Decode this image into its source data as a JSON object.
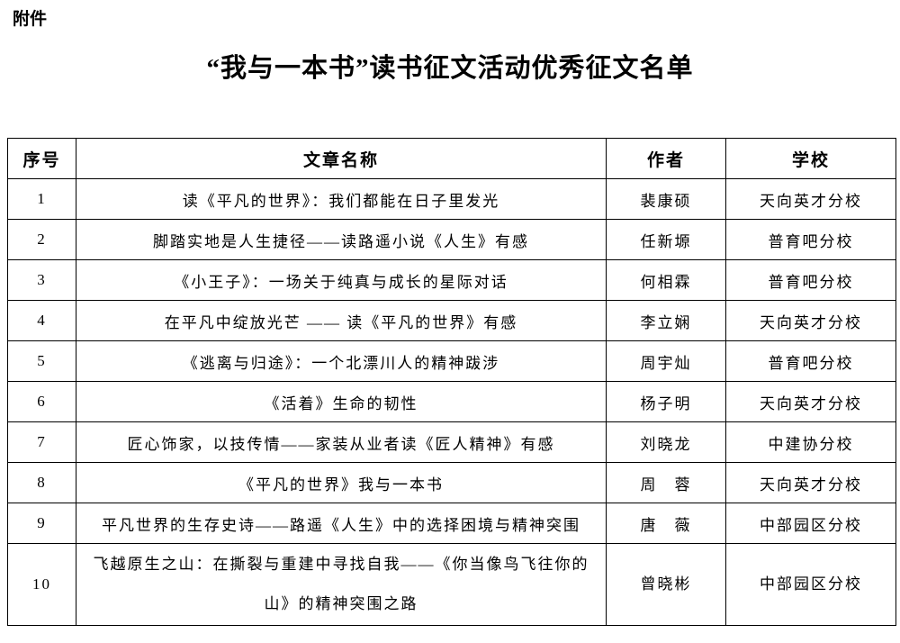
{
  "attachment_label": "附件",
  "title": "“我与一本书”读书征文活动优秀征文名单",
  "table": {
    "headers": [
      "序号",
      "文章名称",
      "作者",
      "学校"
    ],
    "rows": [
      {
        "no": "1",
        "article": "读《平凡的世界》：我们都能在日子里发光",
        "author": "裴康硕",
        "school": "天向英才分校"
      },
      {
        "no": "2",
        "article": "脚踏实地是人生捷径——读路遥小说《人生》有感",
        "author": "任新塬",
        "school": "普育吧分校"
      },
      {
        "no": "3",
        "article": "《小王子》：一场关于纯真与成长的星际对话",
        "author": "何相霖",
        "school": "普育吧分校"
      },
      {
        "no": "4",
        "article": "在平凡中绽放光芒 —— 读《平凡的世界》有感",
        "author": "李立娴",
        "school": "天向英才分校"
      },
      {
        "no": "5",
        "article": "《逃离与归途》：一个北漂川人的精神跋涉",
        "author": "周宇灿",
        "school": "普育吧分校"
      },
      {
        "no": "6",
        "article": "《活着》生命的韧性",
        "author": "杨子明",
        "school": "天向英才分校"
      },
      {
        "no": "7",
        "article": "匠心饰家，以技传情——家装从业者读《匠人精神》有感",
        "author": "刘晓龙",
        "school": "中建协分校"
      },
      {
        "no": "8",
        "article": "《平凡的世界》我与一本书",
        "author": "周　蓉",
        "school": "天向英才分校"
      },
      {
        "no": "9",
        "article": "平凡世界的生存史诗——路遥《人生》中的选择困境与精神突围",
        "author": "唐　薇",
        "school": "中部园区分校"
      },
      {
        "no": "10",
        "article": "飞越原生之山：在撕裂与重建中寻找自我——《你当像鸟飞往你的山》的精神突围之路",
        "author": "曾晓彬",
        "school": "中部园区分校"
      }
    ]
  }
}
